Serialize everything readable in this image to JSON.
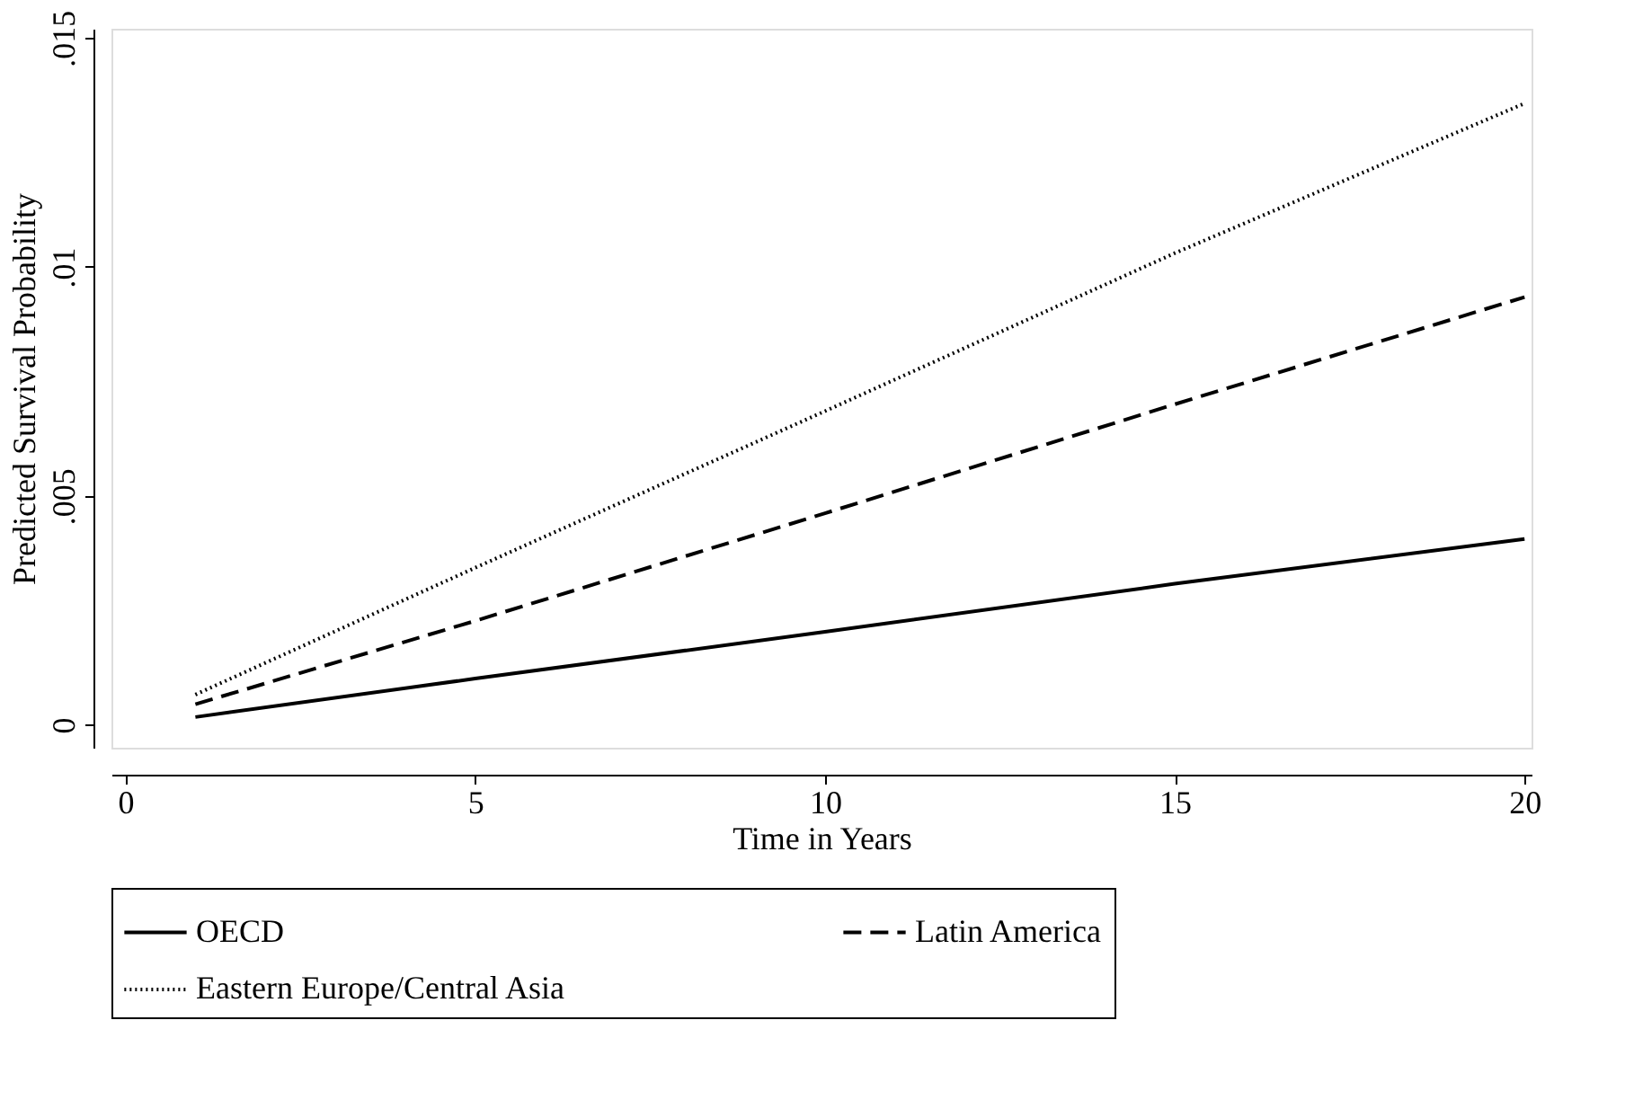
{
  "chart_data": {
    "type": "line",
    "xlabel": "Time in Years",
    "ylabel": "Predicted Survival Probability",
    "xlim": [
      -0.2,
      20.1
    ],
    "xticks": [
      0,
      5,
      10,
      15,
      20
    ],
    "ylim": [
      -0.0005,
      0.0152
    ],
    "yticks": [
      {
        "value": 0,
        "label": "0"
      },
      {
        "value": 0.005,
        "label": ".005"
      },
      {
        "value": 0.01,
        "label": ".01"
      },
      {
        "value": 0.015,
        "label": ".015"
      }
    ],
    "grid": false,
    "legend": "bottom",
    "marker": "none",
    "series": [
      {
        "name": "OECD",
        "color": "#000000",
        "line_style": "solid",
        "x": [
          1,
          5,
          10,
          15,
          20
        ],
        "values": [
          0.00017,
          0.00101,
          0.00203,
          0.00308,
          0.00406
        ]
      },
      {
        "name": "Latin America",
        "color": "#000000",
        "line_style": "dashed",
        "x": [
          1,
          5,
          10,
          15,
          20
        ],
        "values": [
          0.00045,
          0.00227,
          0.00462,
          0.007,
          0.00934
        ]
      },
      {
        "name": "Eastern Europe/Central Asia",
        "color": "#000000",
        "line_style": "dotted",
        "x": [
          1,
          5,
          10,
          15,
          20
        ],
        "values": [
          0.00066,
          0.00343,
          0.00685,
          0.0103,
          0.01357
        ]
      }
    ]
  }
}
